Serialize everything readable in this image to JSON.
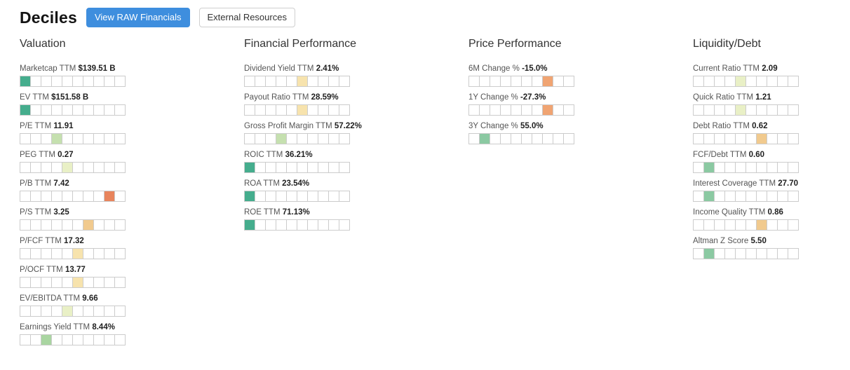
{
  "header": {
    "title": "Deciles",
    "view_raw_button": "View RAW Financials",
    "external_resources_button": "External Resources",
    "primary_button_color": "#3e8ede"
  },
  "decile_colors": {
    "1": "#45ad8d",
    "2": "#8bc9a2",
    "3": "#a9d5a1",
    "4": "#c5e0af",
    "5": "#e9f0c6",
    "6": "#f7e3ad",
    "7": "#f1ca8e",
    "8": "#f0a472",
    "9": "#e8845c"
  },
  "columns": [
    {
      "header": "Valuation",
      "metrics": [
        {
          "label": "Marketcap TTM",
          "value": "$139.51 B",
          "decile": 1
        },
        {
          "label": "EV TTM",
          "value": "$151.58 B",
          "decile": 1
        },
        {
          "label": "P/E TTM",
          "value": "11.91",
          "decile": 4
        },
        {
          "label": "PEG TTM",
          "value": "0.27",
          "decile": 5
        },
        {
          "label": "P/B TTM",
          "value": "7.42",
          "decile": 9
        },
        {
          "label": "P/S TTM",
          "value": "3.25",
          "decile": 7
        },
        {
          "label": "P/FCF TTM",
          "value": "17.32",
          "decile": 6
        },
        {
          "label": "P/OCF TTM",
          "value": "13.77",
          "decile": 6
        },
        {
          "label": "EV/EBITDA TTM",
          "value": "9.66",
          "decile": 5
        },
        {
          "label": "Earnings Yield TTM",
          "value": "8.44%",
          "decile": 3
        }
      ]
    },
    {
      "header": "Financial Performance",
      "metrics": [
        {
          "label": "Dividend Yield TTM",
          "value": "2.41%",
          "decile": 6
        },
        {
          "label": "Payout Ratio TTM",
          "value": "28.59%",
          "decile": 6
        },
        {
          "label": "Gross Profit Margin TTM",
          "value": "57.22%",
          "decile": 4
        },
        {
          "label": "ROIC TTM",
          "value": "36.21%",
          "decile": 1
        },
        {
          "label": "ROA TTM",
          "value": "23.54%",
          "decile": 1
        },
        {
          "label": "ROE TTM",
          "value": "71.13%",
          "decile": 1
        }
      ]
    },
    {
      "header": "Price Performance",
      "metrics": [
        {
          "label": "6M Change %",
          "value": "-15.0%",
          "decile": 8
        },
        {
          "label": "1Y Change %",
          "value": "-27.3%",
          "decile": 8
        },
        {
          "label": "3Y Change %",
          "value": "55.0%",
          "decile": 2
        }
      ]
    },
    {
      "header": "Liquidity/Debt",
      "metrics": [
        {
          "label": "Current Ratio TTM",
          "value": "2.09",
          "decile": 5
        },
        {
          "label": "Quick Ratio TTM",
          "value": "1.21",
          "decile": 5
        },
        {
          "label": "Debt Ratio TTM",
          "value": "0.62",
          "decile": 7
        },
        {
          "label": "FCF/Debt TTM",
          "value": "0.60",
          "decile": 2
        },
        {
          "label": "Interest Coverage TTM",
          "value": "27.70",
          "decile": 2
        },
        {
          "label": "Income Quality TTM",
          "value": "0.86",
          "decile": 7
        },
        {
          "label": "Altman Z Score",
          "value": "5.50",
          "decile": 2
        }
      ]
    }
  ]
}
